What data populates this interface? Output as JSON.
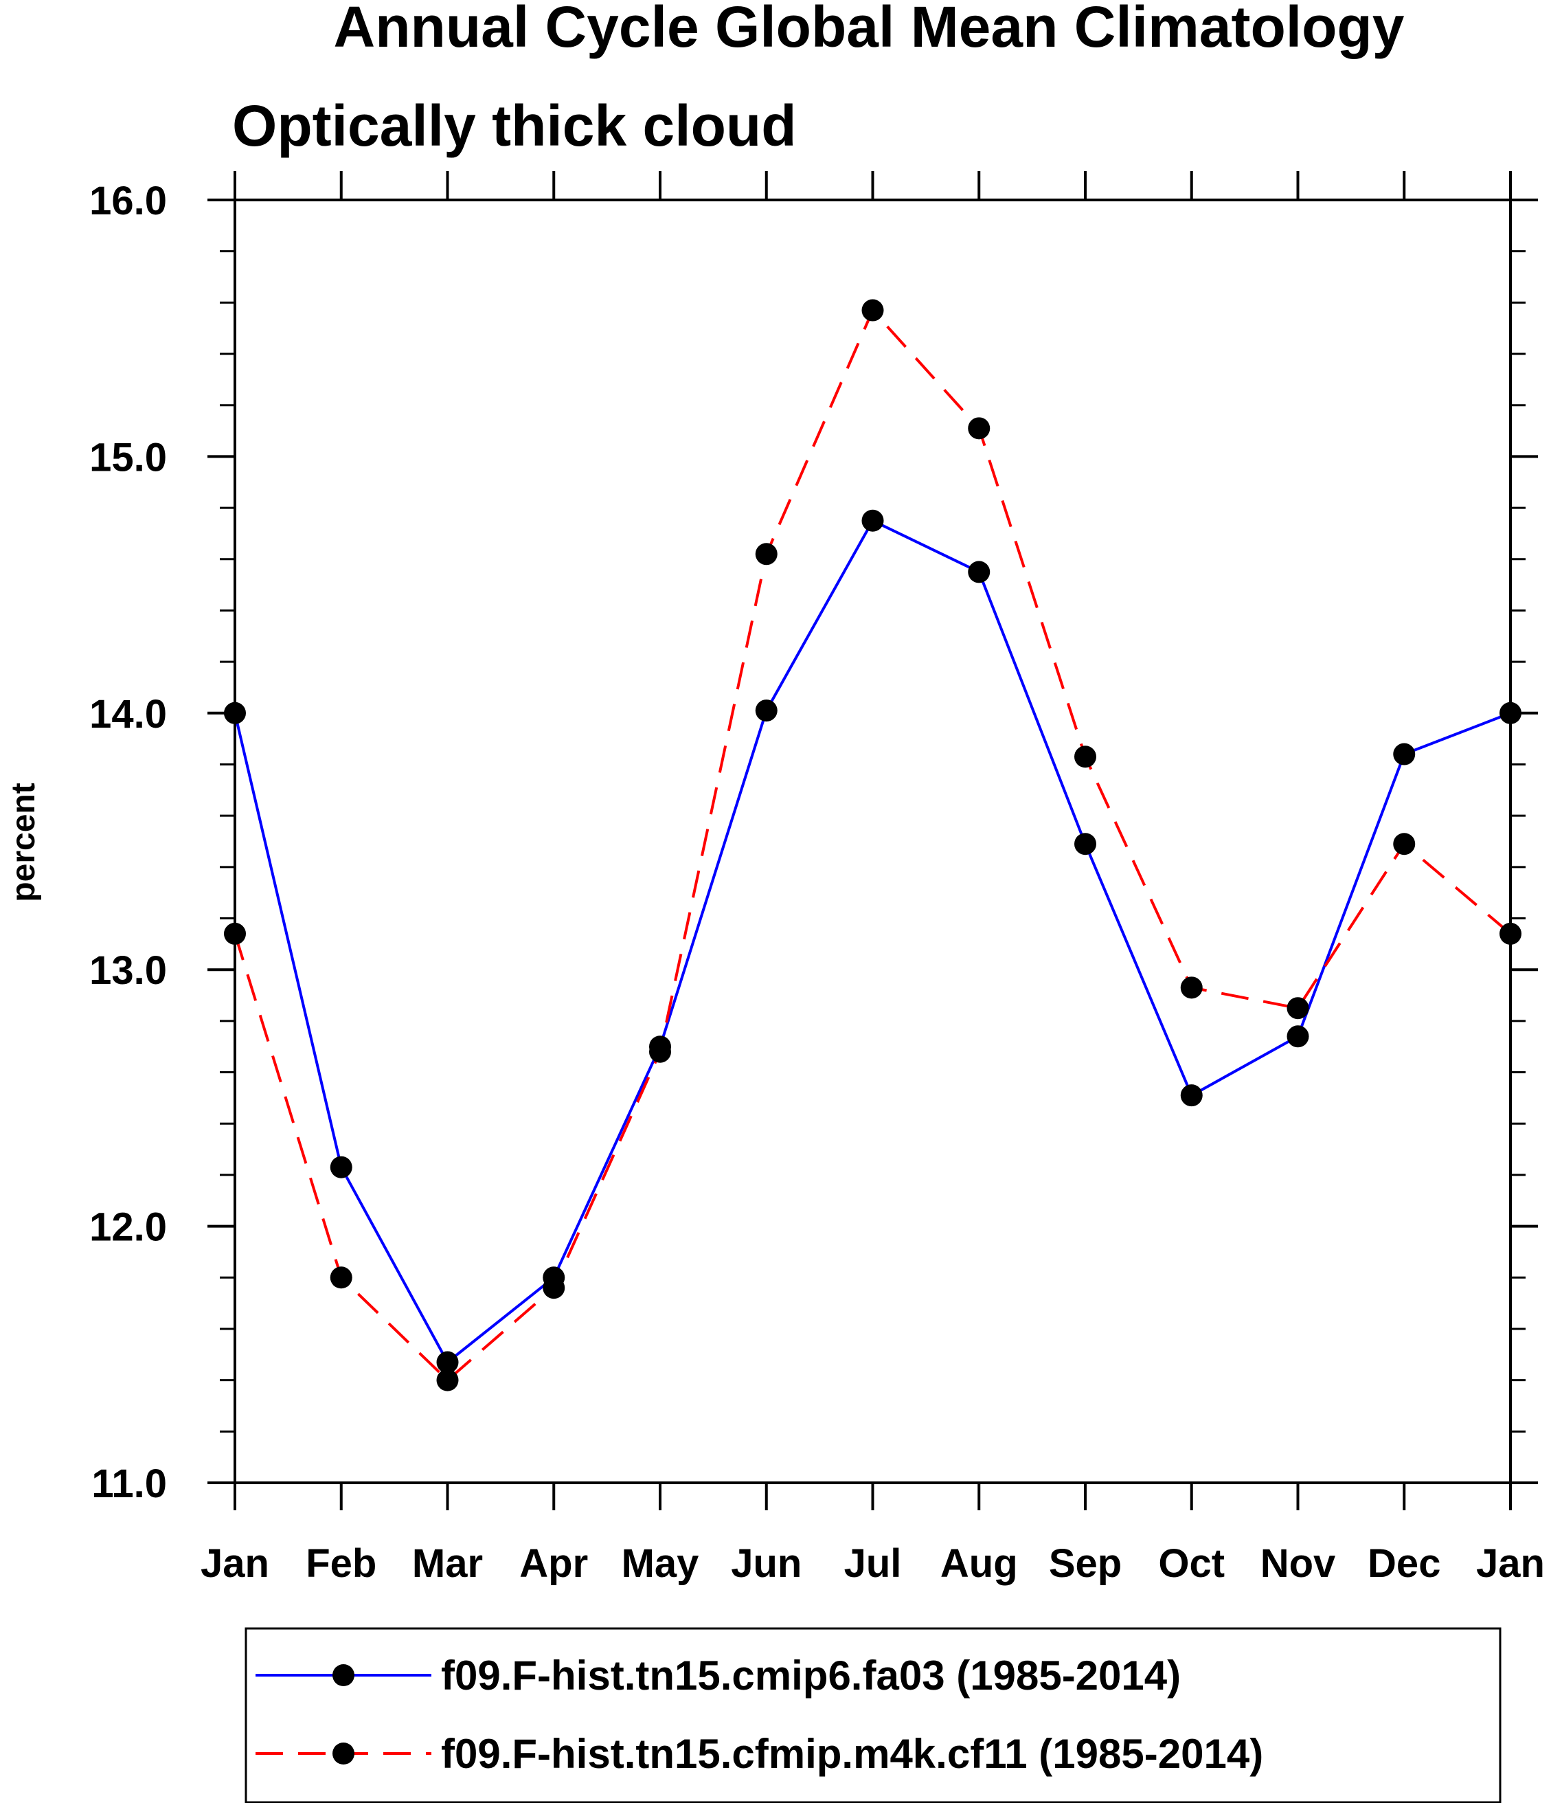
{
  "chart_data": {
    "type": "line",
    "title": "Annual Cycle Global Mean Climatology",
    "subtitle": "Optically thick cloud",
    "xlabel": "",
    "ylabel": "percent",
    "categories": [
      "Jan",
      "Feb",
      "Mar",
      "Apr",
      "May",
      "Jun",
      "Jul",
      "Aug",
      "Sep",
      "Oct",
      "Nov",
      "Dec",
      "Jan"
    ],
    "ylim": [
      11.0,
      16.0
    ],
    "yticks": [
      "11.0",
      "12.0",
      "13.0",
      "14.0",
      "15.0",
      "16.0"
    ],
    "series": [
      {
        "name": "f09.F-hist.tn15.cmip6.fa03 (1985-2014)",
        "color": "#0000ff",
        "style": "solid",
        "marker": "filled-circle",
        "values": [
          14.0,
          12.23,
          11.47,
          11.8,
          12.7,
          14.01,
          14.75,
          14.55,
          13.49,
          12.51,
          12.74,
          13.84,
          14.0
        ]
      },
      {
        "name": "f09.F-hist.tn15.cfmip.m4k.cf11 (1985-2014)",
        "color": "#ff0000",
        "style": "dashed",
        "marker": "filled-circle",
        "values": [
          13.14,
          11.8,
          11.4,
          11.76,
          12.68,
          14.62,
          15.57,
          15.11,
          13.83,
          12.93,
          12.85,
          13.49,
          13.14
        ]
      }
    ],
    "legend": {
      "position": "bottom"
    },
    "grid": false
  }
}
